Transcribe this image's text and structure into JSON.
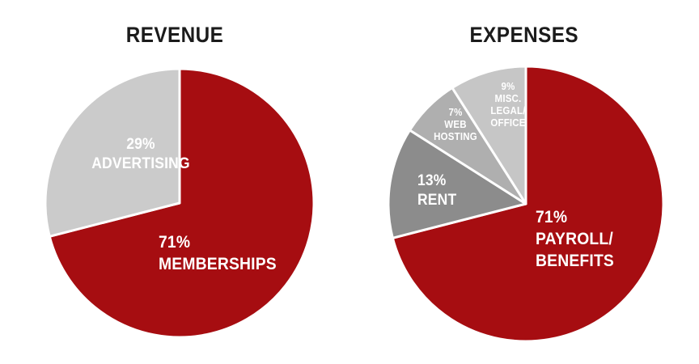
{
  "page": {
    "background_color": "#FFFFFF",
    "title_color": "#1B1B1B",
    "slice_label_color": "#FFFFFF"
  },
  "chart_data": [
    {
      "type": "pie",
      "title": "REVENUE",
      "start_angle_deg": 0,
      "direction": "clockwise",
      "legend_position": "none",
      "slices": [
        {
          "id": "memberships",
          "label": "MEMBERSHIPS",
          "value": 71,
          "unit": "%",
          "color": "#A60D11",
          "text_color": "#FFFFFF",
          "lines": [
            "71%",
            "MEMBERSHIPS"
          ]
        },
        {
          "id": "advertising",
          "label": "ADVERTISING",
          "value": 29,
          "unit": "%",
          "color": "#CBCBCB",
          "text_color": "#FFFFFF",
          "lines": [
            "29%",
            "ADVERTISING"
          ]
        }
      ]
    },
    {
      "type": "pie",
      "title": "EXPENSES",
      "start_angle_deg": 0,
      "direction": "clockwise",
      "legend_position": "none",
      "slices": [
        {
          "id": "payroll-benefits",
          "label": "PAYROLL/BENEFITS",
          "value": 71,
          "unit": "%",
          "color": "#A60D11",
          "text_color": "#FFFFFF",
          "lines": [
            "71%",
            "PAYROLL/",
            "BENEFITS"
          ]
        },
        {
          "id": "rent",
          "label": "RENT",
          "value": 13,
          "unit": "%",
          "color": "#8C8C8C",
          "text_color": "#FFFFFF",
          "lines": [
            "13%",
            "RENT"
          ]
        },
        {
          "id": "web-hosting",
          "label": "WEB HOSTING",
          "value": 7,
          "unit": "%",
          "color": "#AFAFAF",
          "text_color": "#FFFFFF",
          "lines": [
            "7%",
            "WEB",
            "HOSTING"
          ]
        },
        {
          "id": "misc-legal-office",
          "label": "MISC. LEGAL/OFFICE",
          "value": 9,
          "unit": "%",
          "color": "#C6C6C6",
          "text_color": "#FFFFFF",
          "lines": [
            "9%",
            "MISC.",
            "LEGAL/",
            "OFFICE"
          ]
        }
      ]
    }
  ]
}
